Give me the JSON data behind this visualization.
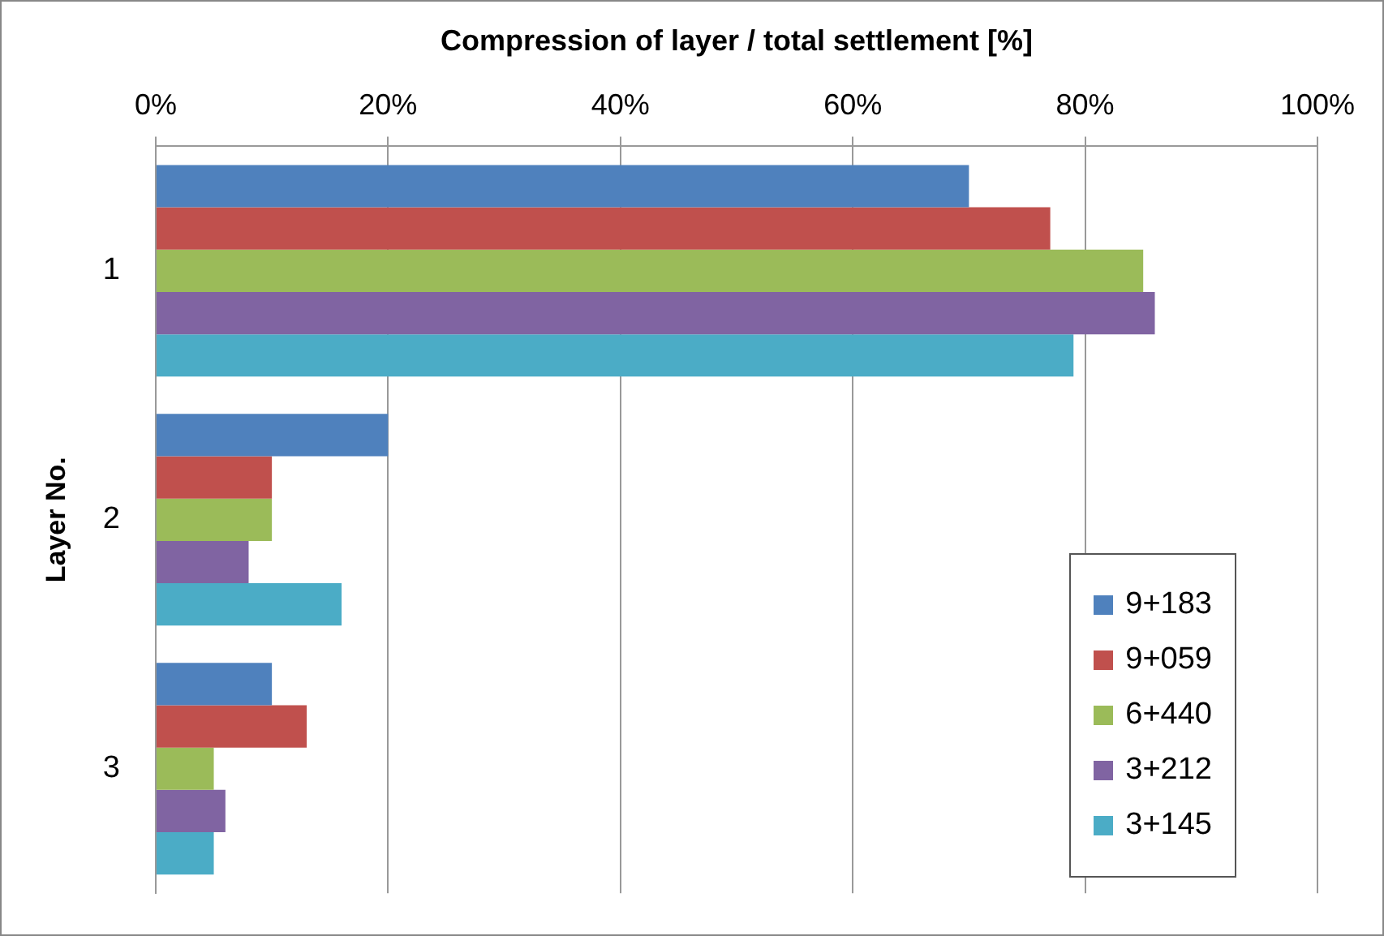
{
  "chart_data": {
    "type": "bar",
    "orientation": "horizontal",
    "xlabel": "Compression of layer / total settlement [%]",
    "ylabel": "Layer No.",
    "categories": [
      "1",
      "2",
      "3"
    ],
    "series": [
      {
        "name": "9+183",
        "color": "#4f81bd",
        "values": [
          70,
          20,
          10
        ]
      },
      {
        "name": "9+059",
        "color": "#c0504d",
        "values": [
          77,
          10,
          13
        ]
      },
      {
        "name": "6+440",
        "color": "#9bbb59",
        "values": [
          85,
          10,
          5
        ]
      },
      {
        "name": "3+212",
        "color": "#8064a2",
        "values": [
          86,
          8,
          6
        ]
      },
      {
        "name": "3+145",
        "color": "#4bacc6",
        "values": [
          79,
          16,
          5
        ]
      }
    ],
    "xlim": [
      0,
      100
    ],
    "xticks": [
      {
        "value": 0,
        "label": "0%"
      },
      {
        "value": 20,
        "label": "20%"
      },
      {
        "value": 40,
        "label": "40%"
      },
      {
        "value": 60,
        "label": "60%"
      },
      {
        "value": 80,
        "label": "80%"
      },
      {
        "value": 100,
        "label": "100%"
      }
    ],
    "grid": "x",
    "legend": "right"
  }
}
